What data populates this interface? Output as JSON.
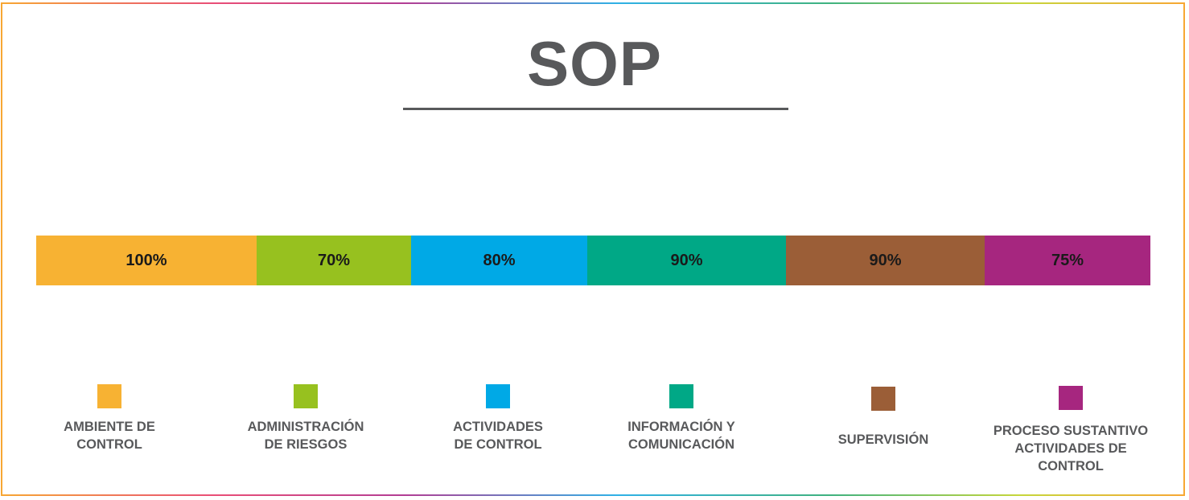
{
  "chart_data": {
    "type": "bar",
    "title": "SOP",
    "categories": [
      "AMBIENTE DE\nCONTROL",
      "ADMINISTRACIÓN\nDE RIESGOS",
      "ACTIVIDADES\nDE CONTROL",
      "INFORMACIÓN Y\nCOMUNICACIÓN",
      "SUPERVISIÓN",
      "PROCESO SUSTANTIVO\nACTIVIDADES DE\nCONTROL"
    ],
    "values": [
      100,
      70,
      80,
      90,
      90,
      75
    ],
    "value_labels": [
      "100%",
      "70%",
      "80%",
      "90%",
      "90%",
      "75%"
    ],
    "colors": [
      "#F7B233",
      "#97C11F",
      "#00A9E6",
      "#00A886",
      "#9B5E37",
      "#A6267F"
    ],
    "legend_position": "bottom",
    "grid": false
  }
}
